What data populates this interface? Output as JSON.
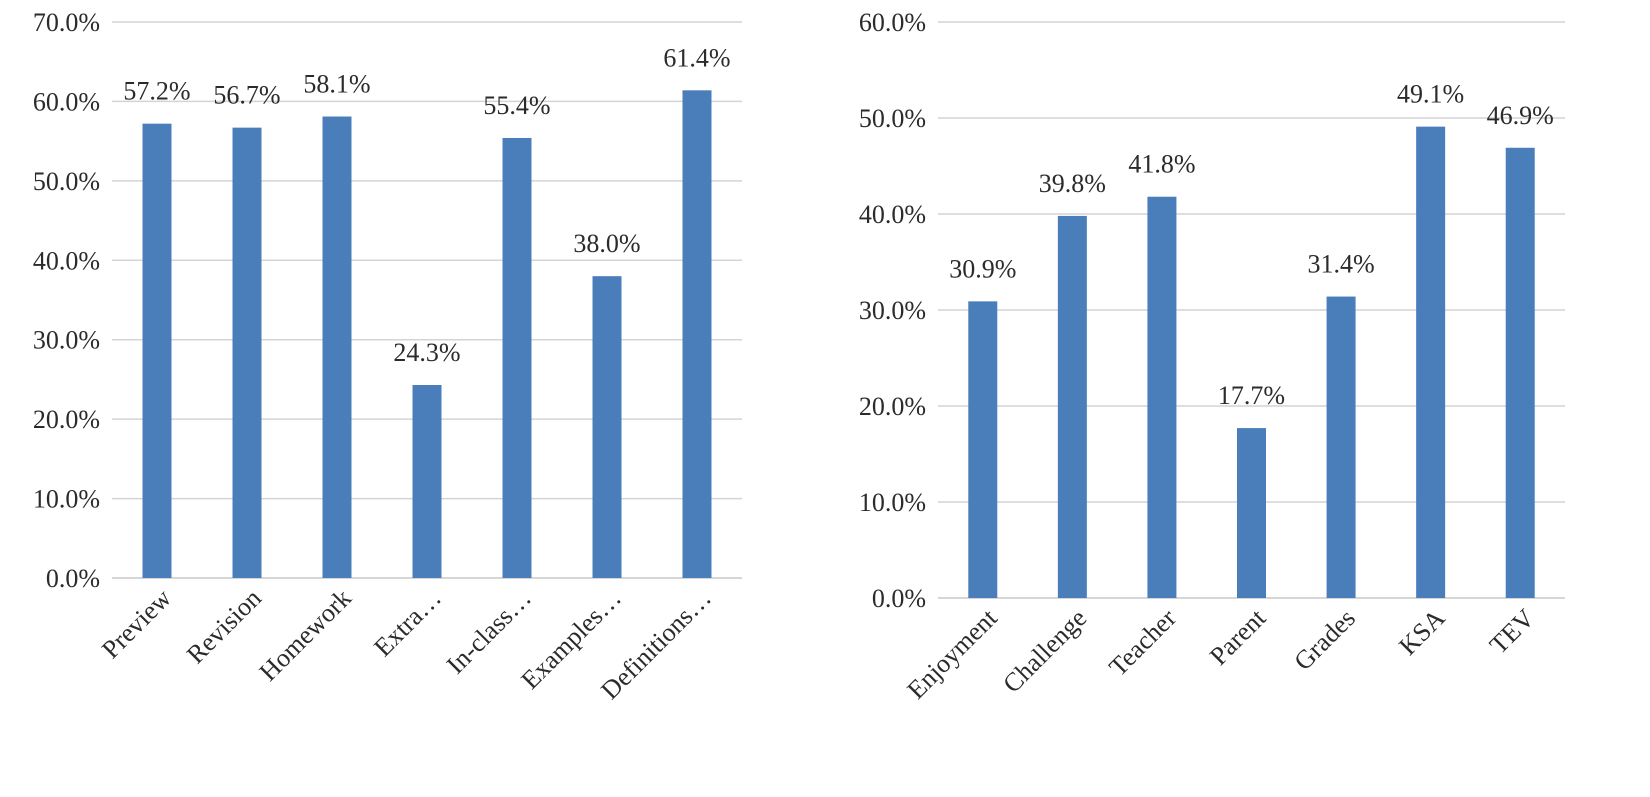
{
  "chart_data": [
    {
      "type": "bar",
      "categories": [
        "Preview",
        "Revision",
        "Homework",
        "Extra…",
        "In-class…",
        "Examples…",
        "Definitions…"
      ],
      "values": [
        57.2,
        56.7,
        58.1,
        24.3,
        55.4,
        38.0,
        61.4
      ],
      "data_labels": [
        "57.2%",
        "56.7%",
        "58.1%",
        "24.3%",
        "55.4%",
        "38.0%",
        "61.4%"
      ],
      "ylim": [
        0,
        70
      ],
      "y_ticks": [
        "0.0%",
        "10.0%",
        "20.0%",
        "30.0%",
        "40.0%",
        "50.0%",
        "60.0%",
        "70.0%"
      ],
      "grid": true,
      "bar_color": "#4a7ebb"
    },
    {
      "type": "bar",
      "categories": [
        "Enjoyment",
        "Challenge",
        "Teacher",
        "Parent",
        "Grades",
        "KSA",
        "TEV"
      ],
      "values": [
        30.9,
        39.8,
        41.8,
        17.7,
        31.4,
        49.1,
        46.9
      ],
      "data_labels": [
        "30.9%",
        "39.8%",
        "41.8%",
        "17.7%",
        "31.4%",
        "49.1%",
        "46.9%"
      ],
      "ylim": [
        0,
        60
      ],
      "y_ticks": [
        "0.0%",
        "10.0%",
        "20.0%",
        "30.0%",
        "40.0%",
        "50.0%",
        "60.0%"
      ],
      "grid": true,
      "bar_color": "#4a7ebb"
    }
  ]
}
